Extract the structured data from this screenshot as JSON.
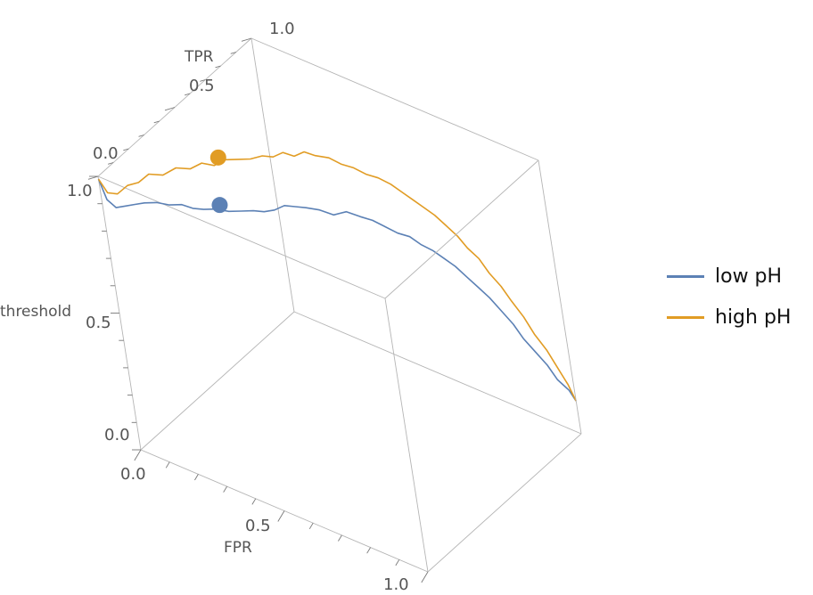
{
  "chart_data": {
    "type": "line3d",
    "title": "",
    "axes": {
      "x": {
        "label": "FPR",
        "range": [
          0,
          1
        ],
        "ticks": [
          "0.0",
          "0.5",
          "1.0"
        ]
      },
      "y": {
        "label": "TPR",
        "range": [
          0,
          1
        ],
        "ticks": [
          "0.0",
          "0.5",
          "1.0"
        ]
      },
      "z": {
        "label": "threshold",
        "range": [
          0,
          1
        ],
        "ticks": [
          "0.0",
          "0.5",
          "1.0"
        ]
      }
    },
    "series": [
      {
        "name": "low pH",
        "color": "#5c81b5",
        "fpr": [
          0.0,
          0.0,
          0.01,
          0.02,
          0.03,
          0.04,
          0.06,
          0.08,
          0.1,
          0.12,
          0.14,
          0.16,
          0.18,
          0.2,
          0.22,
          0.24,
          0.26,
          0.28,
          0.3,
          0.32,
          0.35,
          0.38,
          0.41,
          0.44,
          0.47,
          0.5,
          0.53,
          0.56,
          0.59,
          0.62,
          0.65,
          0.68,
          0.71,
          0.74,
          0.77,
          0.8,
          0.83,
          0.86,
          0.89,
          0.92,
          0.95,
          0.98,
          1.0
        ],
        "tpr": [
          0.0,
          0.03,
          0.06,
          0.1,
          0.14,
          0.18,
          0.22,
          0.26,
          0.3,
          0.33,
          0.36,
          0.4,
          0.44,
          0.48,
          0.52,
          0.55,
          0.58,
          0.61,
          0.64,
          0.67,
          0.7,
          0.73,
          0.76,
          0.79,
          0.81,
          0.83,
          0.85,
          0.87,
          0.88,
          0.9,
          0.91,
          0.92,
          0.93,
          0.94,
          0.95,
          0.96,
          0.97,
          0.97,
          0.98,
          0.99,
          0.99,
          1.0,
          1.0
        ],
        "threshold": [
          0.99,
          0.9,
          0.86,
          0.85,
          0.84,
          0.83,
          0.82,
          0.8,
          0.79,
          0.77,
          0.76,
          0.75,
          0.73,
          0.72,
          0.71,
          0.7,
          0.7,
          0.71,
          0.7,
          0.69,
          0.68,
          0.66,
          0.67,
          0.65,
          0.64,
          0.62,
          0.6,
          0.59,
          0.57,
          0.55,
          0.53,
          0.51,
          0.48,
          0.45,
          0.42,
          0.38,
          0.34,
          0.3,
          0.26,
          0.22,
          0.18,
          0.15,
          0.12
        ],
        "highlight": {
          "fpr": 0.15,
          "tpr": 0.44,
          "threshold": 0.74
        }
      },
      {
        "name": "high pH",
        "color": "#e19c24",
        "fpr": [
          0.0,
          0.0,
          0.01,
          0.02,
          0.03,
          0.04,
          0.06,
          0.08,
          0.1,
          0.12,
          0.14,
          0.16,
          0.18,
          0.2,
          0.22,
          0.24,
          0.26,
          0.28,
          0.3,
          0.32,
          0.35,
          0.38,
          0.41,
          0.44,
          0.47,
          0.5,
          0.53,
          0.56,
          0.59,
          0.62,
          0.65,
          0.68,
          0.71,
          0.74,
          0.77,
          0.8,
          0.83,
          0.86,
          0.89,
          0.92,
          0.95,
          0.98,
          1.0
        ],
        "tpr": [
          0.0,
          0.04,
          0.08,
          0.13,
          0.18,
          0.23,
          0.28,
          0.33,
          0.38,
          0.42,
          0.46,
          0.5,
          0.54,
          0.58,
          0.62,
          0.65,
          0.68,
          0.71,
          0.74,
          0.77,
          0.8,
          0.82,
          0.84,
          0.86,
          0.88,
          0.9,
          0.91,
          0.92,
          0.93,
          0.94,
          0.95,
          0.96,
          0.96,
          0.97,
          0.97,
          0.98,
          0.98,
          0.99,
          0.99,
          1.0,
          1.0,
          1.0,
          1.0
        ],
        "threshold": [
          0.99,
          0.92,
          0.9,
          0.91,
          0.9,
          0.91,
          0.89,
          0.9,
          0.88,
          0.89,
          0.87,
          0.88,
          0.87,
          0.86,
          0.86,
          0.85,
          0.86,
          0.84,
          0.85,
          0.83,
          0.82,
          0.8,
          0.79,
          0.77,
          0.76,
          0.74,
          0.72,
          0.7,
          0.68,
          0.66,
          0.63,
          0.6,
          0.57,
          0.54,
          0.5,
          0.46,
          0.42,
          0.37,
          0.32,
          0.27,
          0.22,
          0.17,
          0.12
        ],
        "highlight": {
          "fpr": 0.12,
          "tpr": 0.52,
          "threshold": 0.86
        }
      }
    ],
    "legend": {
      "position": "right",
      "items": [
        "low pH",
        "high pH"
      ]
    }
  }
}
